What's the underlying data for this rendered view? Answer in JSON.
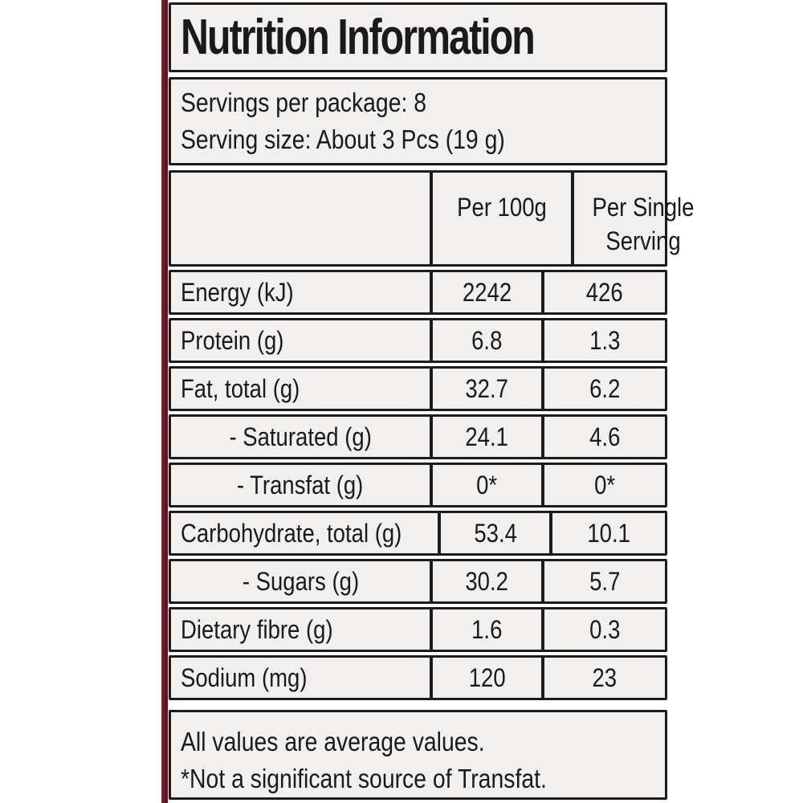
{
  "label": {
    "title": "Nutrition Information",
    "serving_info": {
      "line1": "Servings per package: 8",
      "line2": "Serving size: About 3 Pcs (19 g)"
    },
    "table": {
      "columns": [
        "",
        "Per 100g",
        "Per Single Serving"
      ],
      "rows": [
        {
          "name": "Energy (kJ)",
          "per_100g": "2242",
          "per_serving": "426",
          "indent": false
        },
        {
          "name": "Protein (g)",
          "per_100g": "6.8",
          "per_serving": "1.3",
          "indent": false
        },
        {
          "name": "Fat, total (g)",
          "per_100g": "32.7",
          "per_serving": "6.2",
          "indent": false
        },
        {
          "name": "- Saturated (g)",
          "per_100g": "24.1",
          "per_serving": "4.6",
          "indent": true
        },
        {
          "name": "- Transfat (g)",
          "per_100g": "0*",
          "per_serving": "0*",
          "indent": true
        },
        {
          "name": "Carbohydrate, total (g)",
          "per_100g": "53.4",
          "per_serving": "10.1",
          "indent": false
        },
        {
          "name": "- Sugars (g)",
          "per_100g": "30.2",
          "per_serving": "5.7",
          "indent": true
        },
        {
          "name": "Dietary fibre (g)",
          "per_100g": "1.6",
          "per_serving": "0.3",
          "indent": false
        },
        {
          "name": "Sodium (mg)",
          "per_100g": "120",
          "per_serving": "23",
          "indent": false
        }
      ]
    },
    "footnotes": {
      "line1": "All values are average values.",
      "line2": "*Not a significant source of Transfat."
    },
    "colors": {
      "package_edge_red": "#6f1623",
      "panel_background": "#f1f0ee",
      "border_black": "#1c1c1c",
      "text_black": "#1a1a1a"
    }
  }
}
